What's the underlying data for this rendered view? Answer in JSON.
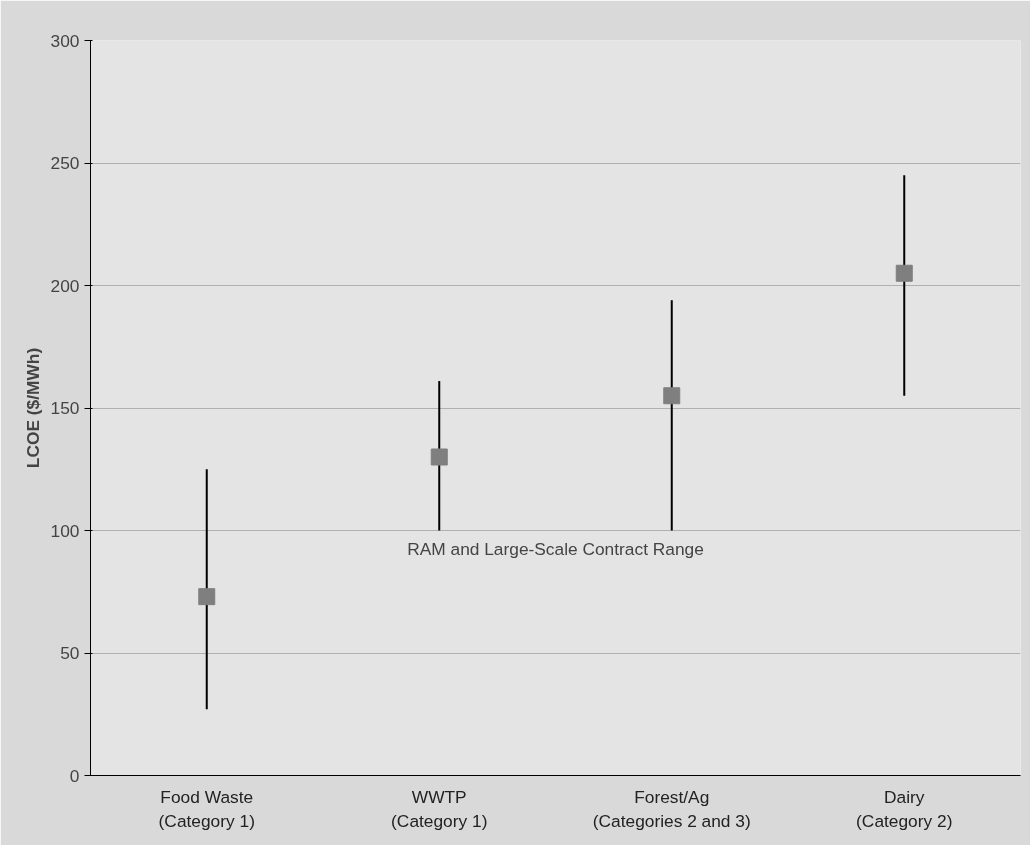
{
  "chart_data": {
    "type": "scatter",
    "ylabel": "LCOE ($/MWh)",
    "categories": [
      "Food Waste\n(Category 1)",
      "WWTP\n(Category 1)",
      "Forest/Ag\n(Categories 2 and 3)",
      "Dairy\n(Category 2)"
    ],
    "series": [
      {
        "color": "#7f7f7f",
        "values": [
          73,
          130,
          155,
          205
        ],
        "errors": [
          [
            27,
            125
          ],
          [
            100,
            161
          ],
          [
            100,
            194
          ],
          [
            155,
            245
          ]
        ]
      }
    ],
    "ylim": [
      0,
      300
    ],
    "yticks": [
      0,
      50,
      100,
      150,
      200,
      250,
      300
    ],
    "grid": "y",
    "marker": "square",
    "annotations": [
      "RAM and Large-Scale Contract Range"
    ]
  }
}
